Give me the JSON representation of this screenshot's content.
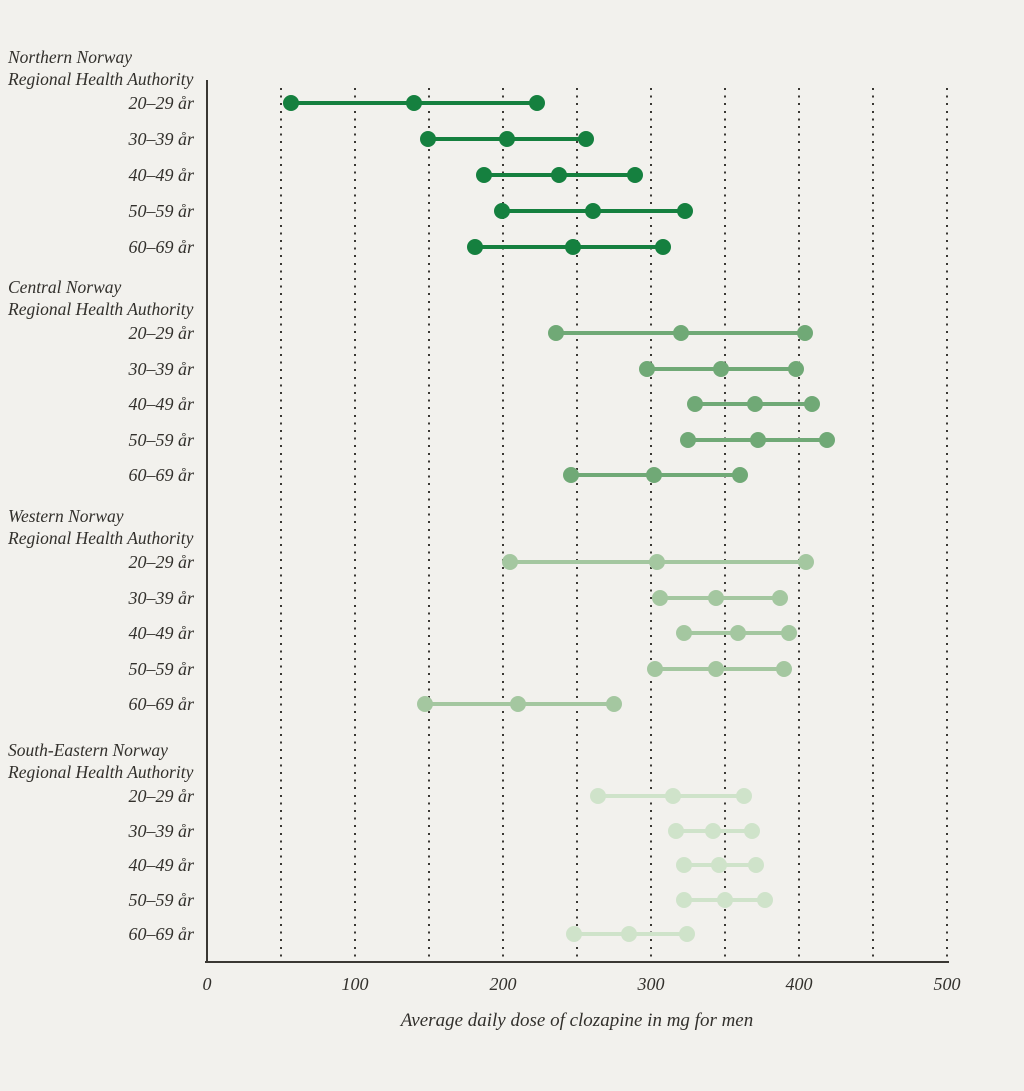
{
  "chart_data": {
    "type": "dumbbell",
    "title": "",
    "xlabel": "Average daily dose of clozapine in mg for men",
    "ylabel": "",
    "xlim": [
      0,
      500
    ],
    "x_ticks": [
      0,
      100,
      200,
      300,
      400,
      500
    ],
    "gridline_step": 50,
    "grid": "dotted-vertical",
    "groups": [
      {
        "name_lines": [
          "Northern Norway",
          "Regional Health Authority"
        ],
        "color": "#15803f",
        "rows": [
          {
            "label": "20–29 år",
            "low": 57,
            "mid": 140,
            "high": 223
          },
          {
            "label": "30–39 år",
            "low": 149,
            "mid": 203,
            "high": 256
          },
          {
            "label": "40–49 år",
            "low": 187,
            "mid": 238,
            "high": 289
          },
          {
            "label": "50–59 år",
            "low": 199,
            "mid": 261,
            "high": 323
          },
          {
            "label": "60–69 år",
            "low": 181,
            "mid": 247,
            "high": 308
          }
        ]
      },
      {
        "name_lines": [
          "Central Norway",
          "Regional Health Authority"
        ],
        "color": "#70a976",
        "rows": [
          {
            "label": "20–29 år",
            "low": 236,
            "mid": 320,
            "high": 404
          },
          {
            "label": "30–39 år",
            "low": 297,
            "mid": 347,
            "high": 398
          },
          {
            "label": "40–49 år",
            "low": 330,
            "mid": 370,
            "high": 409
          },
          {
            "label": "50–59 år",
            "low": 325,
            "mid": 372,
            "high": 419
          },
          {
            "label": "60–69 år",
            "low": 246,
            "mid": 302,
            "high": 360
          }
        ]
      },
      {
        "name_lines": [
          "Western Norway",
          "Regional Health Authority"
        ],
        "color": "#a4c7a0",
        "rows": [
          {
            "label": "20–29 år",
            "low": 205,
            "mid": 304,
            "high": 405
          },
          {
            "label": "30–39 år",
            "low": 306,
            "mid": 344,
            "high": 387
          },
          {
            "label": "40–49 år",
            "low": 322,
            "mid": 359,
            "high": 393
          },
          {
            "label": "50–59 år",
            "low": 303,
            "mid": 344,
            "high": 390
          },
          {
            "label": "60–69 år",
            "low": 147,
            "mid": 210,
            "high": 275
          }
        ]
      },
      {
        "name_lines": [
          "South-Eastern Norway",
          "Regional Health Authority"
        ],
        "color": "#cfe3ca",
        "rows": [
          {
            "label": "20–29 år",
            "low": 264,
            "mid": 315,
            "high": 363
          },
          {
            "label": "30–39 år",
            "low": 317,
            "mid": 342,
            "high": 368
          },
          {
            "label": "40–49 år",
            "low": 322,
            "mid": 346,
            "high": 371
          },
          {
            "label": "50–59 år",
            "low": 322,
            "mid": 350,
            "high": 377
          },
          {
            "label": "60–69 år",
            "low": 248,
            "mid": 285,
            "high": 324
          }
        ]
      }
    ]
  },
  "colors": {
    "background": "#f2f1ed",
    "axis_and_text": "#32302c"
  }
}
